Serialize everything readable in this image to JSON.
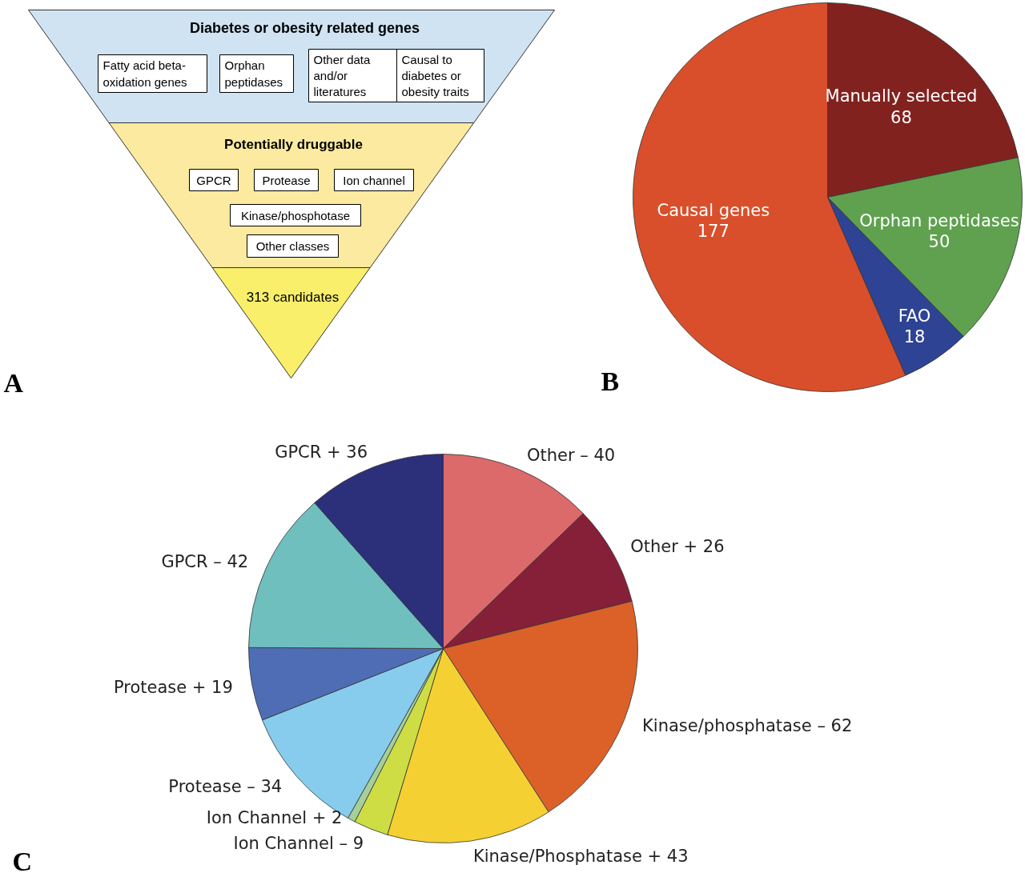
{
  "chart_data": [
    {
      "type": "other",
      "categories": [
        "Diabetes or obesity related genes",
        "Potentially druggable",
        "313 candidates"
      ],
      "annotations": [
        "Fatty acid beta-\noxidation genes",
        "Orphan\npeptidases",
        "Other data\nand/or\nliteratures",
        "Causal to\ndiabetes or\nobesity traits",
        "GPCR",
        "Protease",
        "Ion channel",
        "Kinase/phosphotase",
        "Other classes",
        "A"
      ]
    },
    {
      "type": "pie",
      "categories": [
        "Manually selected",
        "Orphan peptidases",
        "FAO",
        "Causal genes"
      ],
      "values": [
        68,
        50,
        18,
        177
      ],
      "colors": [
        "#82221f",
        "#5fa14f",
        "#2e4393",
        "#d94f2b"
      ],
      "data_labels": true,
      "annotations": [
        "B"
      ]
    },
    {
      "type": "pie",
      "categories": [
        "Other – 40",
        "Other + 26",
        "Kinase/phosphatase – 62",
        "Kinase/Phosphatase + 43",
        "Ion Channel – 9",
        "Ion Channel + 2",
        "Protease – 34",
        "Protease + 19",
        "GPCR – 42",
        "GPCR + 36"
      ],
      "values": [
        40,
        26,
        62,
        43,
        9,
        2,
        34,
        19,
        42,
        36
      ],
      "colors": [
        "#dc6a6a",
        "#861f38",
        "#dc6129",
        "#f5d033",
        "#cedd44",
        "#a6cf9a",
        "#87ccec",
        "#4f6db4",
        "#6fbfbf",
        "#2c2f7a"
      ],
      "annotations": [
        "C"
      ]
    }
  ]
}
